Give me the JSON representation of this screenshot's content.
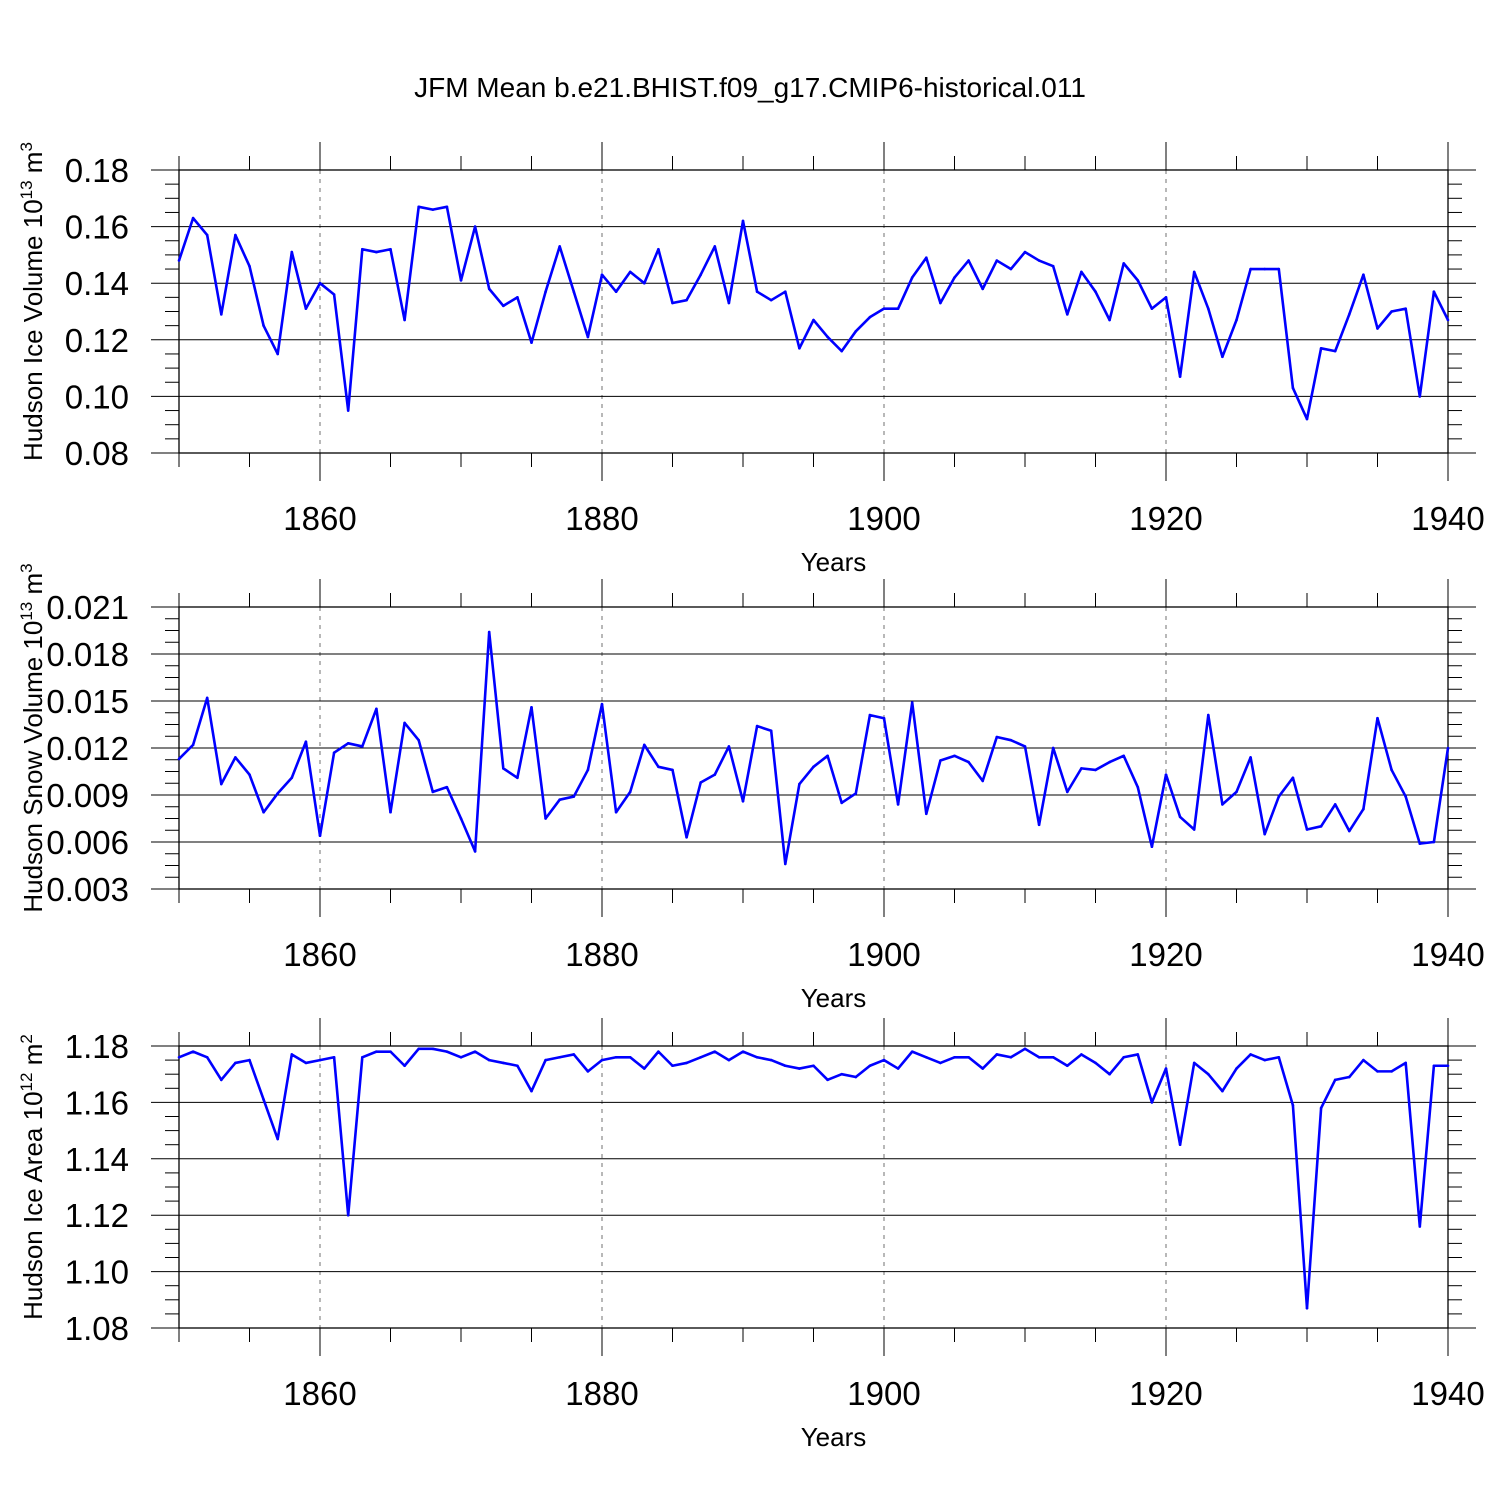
{
  "title": "JFM Mean b.e21.BHIST.f09_g17.CMIP6-historical.011",
  "colors": {
    "series": "#0000ff",
    "axis": "#000000",
    "grid": "#888888"
  },
  "chart_data": [
    {
      "type": "line",
      "ylabel": "Hudson Ice Volume",
      "yunit_base": "10",
      "yunit_exp": "13",
      "yunit_suffix": "m",
      "yunit_suffix_exp": "3",
      "xlabel": "Years",
      "xlim": [
        1850,
        1940
      ],
      "ylim": [
        0.08,
        0.18
      ],
      "yticks": [
        0.08,
        0.1,
        0.12,
        0.14,
        0.16,
        0.18
      ],
      "ytick_labels": [
        "0.08",
        "0.10",
        "0.12",
        "0.14",
        "0.16",
        "0.18"
      ],
      "xticks": [
        1860,
        1880,
        1900,
        1920,
        1940
      ],
      "xtick_labels": [
        "1860",
        "1880",
        "1900",
        "1920",
        "1940"
      ],
      "grid_x": [
        1860,
        1880,
        1900,
        1920
      ],
      "x_start": 1850,
      "values": [
        0.148,
        0.163,
        0.157,
        0.129,
        0.157,
        0.146,
        0.125,
        0.115,
        0.151,
        0.131,
        0.14,
        0.136,
        0.095,
        0.152,
        0.151,
        0.152,
        0.127,
        0.167,
        0.166,
        0.167,
        0.141,
        0.16,
        0.138,
        0.132,
        0.135,
        0.119,
        0.137,
        0.153,
        0.137,
        0.121,
        0.143,
        0.137,
        0.144,
        0.14,
        0.152,
        0.133,
        0.134,
        0.143,
        0.153,
        0.133,
        0.162,
        0.137,
        0.134,
        0.137,
        0.117,
        0.127,
        0.121,
        0.116,
        0.123,
        0.128,
        0.131,
        0.131,
        0.142,
        0.149,
        0.133,
        0.142,
        0.148,
        0.138,
        0.148,
        0.145,
        0.151,
        0.148,
        0.146,
        0.129,
        0.144,
        0.137,
        0.127,
        0.147,
        0.141,
        0.131,
        0.135,
        0.107,
        0.144,
        0.131,
        0.114,
        0.127,
        0.145,
        0.145,
        0.145,
        0.103,
        0.092,
        0.117,
        0.116,
        0.129,
        0.143,
        0.124,
        0.13,
        0.131,
        0.1,
        0.137,
        0.127
      ]
    },
    {
      "type": "line",
      "ylabel": "Hudson Snow Volume",
      "yunit_base": "10",
      "yunit_exp": "13",
      "yunit_suffix": "m",
      "yunit_suffix_exp": "3",
      "xlabel": "Years",
      "xlim": [
        1850,
        1940
      ],
      "ylim": [
        0.003,
        0.021
      ],
      "yticks": [
        0.003,
        0.006,
        0.009,
        0.012,
        0.015,
        0.018,
        0.021
      ],
      "ytick_labels": [
        "0.003",
        "0.006",
        "0.009",
        "0.012",
        "0.015",
        "0.018",
        "0.021"
      ],
      "xticks": [
        1860,
        1880,
        1900,
        1920,
        1940
      ],
      "xtick_labels": [
        "1860",
        "1880",
        "1900",
        "1920",
        "1940"
      ],
      "grid_x": [
        1860,
        1880,
        1900,
        1920
      ],
      "x_start": 1850,
      "values": [
        0.0113,
        0.0122,
        0.0152,
        0.0097,
        0.0114,
        0.0103,
        0.0079,
        0.0091,
        0.0101,
        0.0124,
        0.0064,
        0.0117,
        0.0123,
        0.0121,
        0.0145,
        0.0079,
        0.0136,
        0.0125,
        0.0092,
        0.0095,
        0.0075,
        0.0054,
        0.0194,
        0.0107,
        0.0101,
        0.0146,
        0.0075,
        0.0087,
        0.0089,
        0.0106,
        0.0148,
        0.0079,
        0.0092,
        0.0122,
        0.0108,
        0.0106,
        0.0063,
        0.0098,
        0.0103,
        0.0121,
        0.0086,
        0.0134,
        0.0131,
        0.0046,
        0.0097,
        0.0108,
        0.0115,
        0.0085,
        0.0091,
        0.0141,
        0.0139,
        0.0084,
        0.0149,
        0.0078,
        0.0112,
        0.0115,
        0.0111,
        0.0099,
        0.0127,
        0.0125,
        0.0121,
        0.0071,
        0.012,
        0.0092,
        0.0107,
        0.0106,
        0.0111,
        0.0115,
        0.0095,
        0.0057,
        0.0103,
        0.0076,
        0.0068,
        0.0141,
        0.0084,
        0.0092,
        0.0114,
        0.0065,
        0.0089,
        0.0101,
        0.0068,
        0.007,
        0.0084,
        0.0067,
        0.0081,
        0.0139,
        0.0106,
        0.0089,
        0.0059,
        0.006,
        0.012
      ]
    },
    {
      "type": "line",
      "ylabel": "Hudson Ice Area",
      "yunit_base": "10",
      "yunit_exp": "12",
      "yunit_suffix": "m",
      "yunit_suffix_exp": "2",
      "xlabel": "Years",
      "xlim": [
        1850,
        1940
      ],
      "ylim": [
        1.08,
        1.18
      ],
      "yticks": [
        1.08,
        1.1,
        1.12,
        1.14,
        1.16,
        1.18
      ],
      "ytick_labels": [
        "1.08",
        "1.10",
        "1.12",
        "1.14",
        "1.16",
        "1.18"
      ],
      "xticks": [
        1860,
        1880,
        1900,
        1920,
        1940
      ],
      "xtick_labels": [
        "1860",
        "1880",
        "1900",
        "1920",
        "1940"
      ],
      "grid_x": [
        1860,
        1880,
        1900,
        1920
      ],
      "x_start": 1850,
      "values": [
        1.176,
        1.178,
        1.176,
        1.168,
        1.174,
        1.175,
        1.161,
        1.147,
        1.177,
        1.174,
        1.175,
        1.176,
        1.12,
        1.176,
        1.178,
        1.178,
        1.173,
        1.179,
        1.179,
        1.178,
        1.176,
        1.178,
        1.175,
        1.174,
        1.173,
        1.164,
        1.175,
        1.176,
        1.177,
        1.171,
        1.175,
        1.176,
        1.176,
        1.172,
        1.178,
        1.173,
        1.174,
        1.176,
        1.178,
        1.175,
        1.178,
        1.176,
        1.175,
        1.173,
        1.172,
        1.173,
        1.168,
        1.17,
        1.169,
        1.173,
        1.175,
        1.172,
        1.178,
        1.176,
        1.174,
        1.176,
        1.176,
        1.172,
        1.177,
        1.176,
        1.179,
        1.176,
        1.176,
        1.173,
        1.177,
        1.174,
        1.17,
        1.176,
        1.177,
        1.16,
        1.172,
        1.145,
        1.174,
        1.17,
        1.164,
        1.172,
        1.177,
        1.175,
        1.176,
        1.159,
        1.087,
        1.158,
        1.168,
        1.169,
        1.175,
        1.171,
        1.171,
        1.174,
        1.116,
        1.173,
        1.173
      ]
    }
  ]
}
